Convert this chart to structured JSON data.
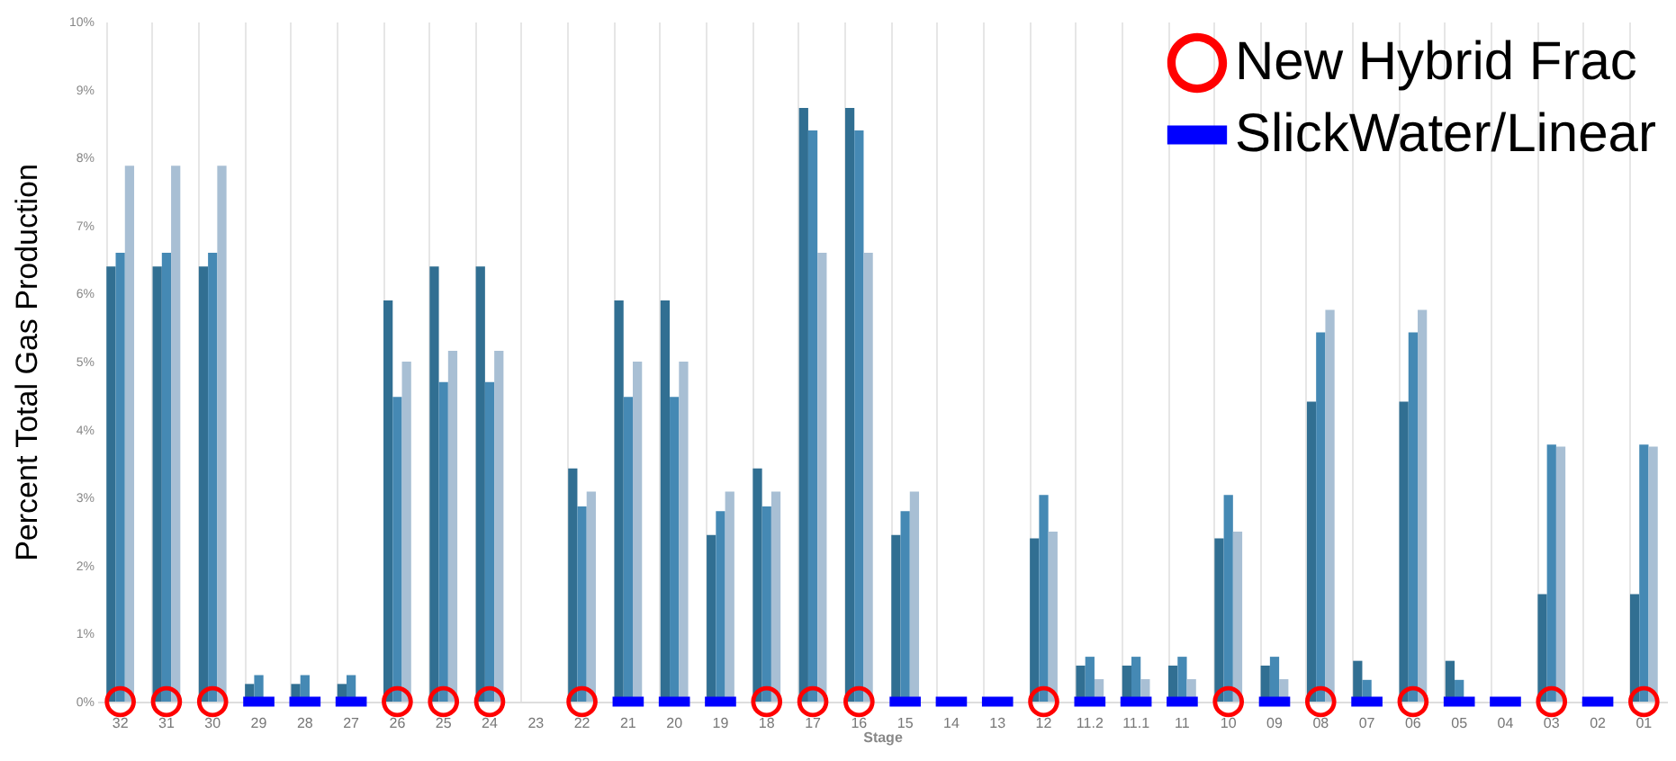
{
  "chart_data": {
    "type": "bar",
    "ylabel": "Percent Total Gas Production",
    "xlabel": "Stage",
    "categories": [
      "32",
      "31",
      "30",
      "29",
      "28",
      "27",
      "26",
      "25",
      "24",
      "23",
      "22",
      "21",
      "20",
      "19",
      "18",
      "17",
      "16",
      "15",
      "14",
      "13",
      "12",
      "11.2",
      "11.1",
      "11",
      "10",
      "09",
      "08",
      "07",
      "06",
      "05",
      "04",
      "03",
      "02",
      "01"
    ],
    "series": [
      {
        "color": "#316f92",
        "values": [
          6.4,
          6.4,
          6.4,
          0.26,
          0.26,
          0.26,
          5.9,
          6.4,
          6.4,
          0,
          3.43,
          5.9,
          5.9,
          2.45,
          3.43,
          8.73,
          8.73,
          2.45,
          0,
          0,
          2.4,
          0.53,
          0.53,
          0.53,
          2.4,
          0.53,
          4.41,
          0.6,
          4.41,
          0.6,
          0,
          1.58,
          0,
          1.58
        ]
      },
      {
        "color": "#4589b4",
        "values": [
          6.6,
          6.6,
          6.6,
          0.39,
          0.39,
          0.39,
          4.48,
          4.7,
          4.7,
          0,
          2.87,
          4.48,
          4.48,
          2.8,
          2.87,
          8.4,
          8.4,
          2.8,
          0,
          0,
          3.04,
          0.66,
          0.66,
          0.66,
          3.04,
          0.66,
          5.43,
          0.32,
          5.43,
          0.32,
          0,
          3.78,
          0,
          3.78
        ]
      },
      {
        "color": "#a8bfd4",
        "values": [
          7.88,
          7.88,
          7.88,
          0,
          0,
          0,
          5.0,
          5.16,
          5.16,
          0,
          3.09,
          5.0,
          5.0,
          3.09,
          3.09,
          6.6,
          6.6,
          3.09,
          0,
          0,
          2.5,
          0.33,
          0.33,
          0.33,
          2.5,
          0.33,
          5.76,
          0,
          5.76,
          0,
          0,
          3.75,
          0,
          3.75
        ]
      },
      {
        "type": "scatter",
        "name": "New Hybrid Frac",
        "color": "#ff0000",
        "marker": "circle",
        "values": [
          0,
          0,
          0,
          null,
          null,
          null,
          0,
          0,
          0,
          null,
          0,
          null,
          null,
          null,
          0,
          0,
          0,
          null,
          null,
          null,
          0,
          null,
          null,
          null,
          0,
          null,
          0,
          null,
          0,
          null,
          null,
          0,
          null,
          0
        ]
      },
      {
        "type": "scatter",
        "name": "SlickWater/Linear",
        "color": "#0000ff",
        "marker": "square",
        "values": [
          null,
          null,
          null,
          0,
          0,
          0,
          null,
          null,
          null,
          null,
          null,
          0,
          0,
          0,
          null,
          null,
          null,
          0,
          0,
          0,
          null,
          0,
          0,
          0,
          null,
          0,
          null,
          0,
          null,
          0,
          0,
          null,
          0,
          null
        ]
      }
    ],
    "ylim": [
      0,
      10
    ],
    "yticks": [
      {
        "value": 0,
        "label": "0%"
      },
      {
        "value": 1,
        "label": "1%"
      },
      {
        "value": 2,
        "label": "2%"
      },
      {
        "value": 3,
        "label": "3%"
      },
      {
        "value": 4,
        "label": "4%"
      },
      {
        "value": 5,
        "label": "5%"
      },
      {
        "value": 6,
        "label": "6%"
      },
      {
        "value": 7,
        "label": "7%"
      },
      {
        "value": 8,
        "label": "8%"
      },
      {
        "value": 9,
        "label": "9%"
      },
      {
        "value": 10,
        "label": "10%"
      }
    ],
    "grid": "x",
    "legend": "top right"
  }
}
